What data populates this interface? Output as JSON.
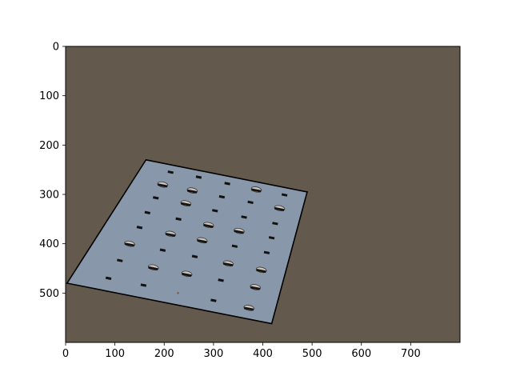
{
  "chart_data": {
    "type": "image",
    "title": "",
    "xlabel": "",
    "ylabel": "",
    "xlim": [
      0,
      800
    ],
    "ylim": [
      600,
      0
    ],
    "x_ticks": [
      0,
      100,
      200,
      300,
      400,
      500,
      600,
      700
    ],
    "y_ticks": [
      0,
      100,
      200,
      300,
      400,
      500
    ],
    "grid": false,
    "background_color": "#63594c",
    "plate": {
      "fill_color": "#8898aa",
      "edge_color": "#000000",
      "corners": [
        [
          163,
          230
        ],
        [
          490,
          295
        ],
        [
          418,
          562
        ],
        [
          3,
          480
        ]
      ]
    },
    "features": [
      {
        "x": 213,
        "y": 255,
        "kind": "slot"
      },
      {
        "x": 270,
        "y": 265,
        "kind": "slot"
      },
      {
        "x": 328,
        "y": 278,
        "kind": "slot"
      },
      {
        "x": 387,
        "y": 290,
        "kind": "oval"
      },
      {
        "x": 444,
        "y": 301,
        "kind": "slot"
      },
      {
        "x": 197,
        "y": 280,
        "kind": "oval"
      },
      {
        "x": 257,
        "y": 292,
        "kind": "oval"
      },
      {
        "x": 317,
        "y": 305,
        "kind": "slot"
      },
      {
        "x": 375,
        "y": 316,
        "kind": "slot"
      },
      {
        "x": 434,
        "y": 328,
        "kind": "oval"
      },
      {
        "x": 183,
        "y": 307,
        "kind": "slot"
      },
      {
        "x": 244,
        "y": 318,
        "kind": "oval"
      },
      {
        "x": 303,
        "y": 333,
        "kind": "slot"
      },
      {
        "x": 362,
        "y": 346,
        "kind": "slot"
      },
      {
        "x": 425,
        "y": 359,
        "kind": "slot"
      },
      {
        "x": 166,
        "y": 337,
        "kind": "slot"
      },
      {
        "x": 229,
        "y": 350,
        "kind": "slot"
      },
      {
        "x": 290,
        "y": 362,
        "kind": "oval"
      },
      {
        "x": 352,
        "y": 374,
        "kind": "oval"
      },
      {
        "x": 418,
        "y": 388,
        "kind": "slot"
      },
      {
        "x": 150,
        "y": 367,
        "kind": "slot"
      },
      {
        "x": 213,
        "y": 380,
        "kind": "oval"
      },
      {
        "x": 277,
        "y": 393,
        "kind": "oval"
      },
      {
        "x": 343,
        "y": 405,
        "kind": "slot"
      },
      {
        "x": 408,
        "y": 418,
        "kind": "slot"
      },
      {
        "x": 130,
        "y": 400,
        "kind": "oval"
      },
      {
        "x": 197,
        "y": 413,
        "kind": "slot"
      },
      {
        "x": 262,
        "y": 426,
        "kind": "slot"
      },
      {
        "x": 330,
        "y": 440,
        "kind": "oval"
      },
      {
        "x": 397,
        "y": 453,
        "kind": "oval"
      },
      {
        "x": 110,
        "y": 434,
        "kind": "slot"
      },
      {
        "x": 178,
        "y": 448,
        "kind": "oval"
      },
      {
        "x": 246,
        "y": 461,
        "kind": "oval"
      },
      {
        "x": 315,
        "y": 474,
        "kind": "slot"
      },
      {
        "x": 385,
        "y": 488,
        "kind": "oval"
      },
      {
        "x": 87,
        "y": 470,
        "kind": "slot"
      },
      {
        "x": 158,
        "y": 484,
        "kind": "slot"
      },
      {
        "x": 228,
        "y": 500,
        "kind": "dot"
      },
      {
        "x": 300,
        "y": 515,
        "kind": "slot"
      },
      {
        "x": 372,
        "y": 530,
        "kind": "oval"
      }
    ]
  }
}
